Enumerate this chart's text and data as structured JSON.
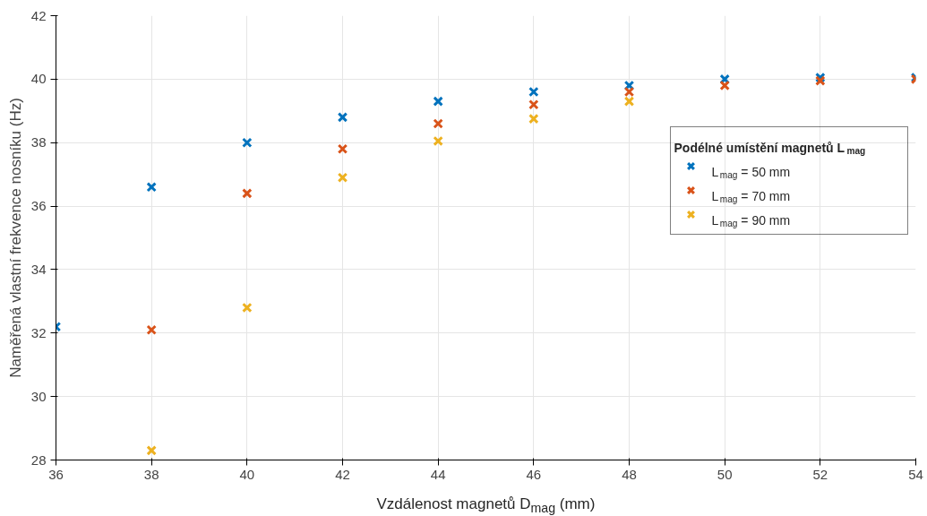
{
  "chart_data": {
    "type": "scatter",
    "xlabel": "Vzdálenost magnetů D$_{mag}$ (mm)",
    "ylabel": "Naměřená vlastní frekvence nosníku (Hz)",
    "legend_title": "Podélné umístění magnetů L$_{mag}$",
    "x": [
      36,
      38,
      40,
      42,
      44,
      46,
      48,
      50,
      52,
      54
    ],
    "series": [
      {
        "name": "L$_{mag}$ = 50 mm",
        "color": "#0072bd",
        "values": [
          32.2,
          36.6,
          38.0,
          38.8,
          39.3,
          39.6,
          39.8,
          40.0,
          40.05,
          40.05
        ]
      },
      {
        "name": "L$_{mag}$ = 70 mm",
        "color": "#d95319",
        "values": [
          null,
          32.1,
          36.4,
          37.8,
          38.6,
          39.2,
          39.6,
          39.8,
          39.95,
          40.0
        ]
      },
      {
        "name": "L$_{mag}$ = 90 mm",
        "color": "#edb120",
        "values": [
          null,
          28.3,
          32.8,
          36.9,
          38.05,
          38.75,
          39.3,
          null,
          null,
          null
        ]
      }
    ],
    "xlim": [
      36,
      54
    ],
    "xticks": [
      36,
      38,
      40,
      42,
      44,
      46,
      48,
      50,
      52,
      54
    ],
    "ylim": [
      28,
      42
    ],
    "yticks": [
      28,
      30,
      32,
      34,
      36,
      38,
      40,
      42
    ],
    "grid": true,
    "legend": "right",
    "marker": "cross"
  }
}
